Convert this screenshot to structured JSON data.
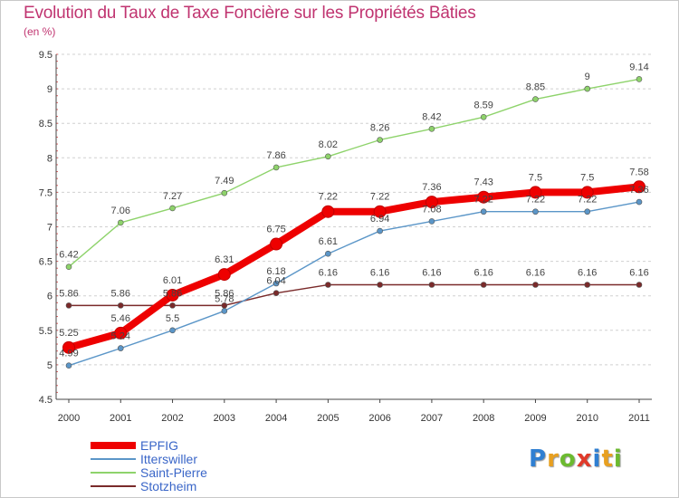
{
  "title": "Evolution du Taux de Taxe Foncière sur les Propriétés Bâties",
  "unit": "(en %)",
  "logo": {
    "letters": [
      "P",
      "r",
      "o",
      "x",
      "i",
      "t",
      "i"
    ],
    "colors": [
      "#2f7fd2",
      "#e8a020",
      "#6cba30",
      "#e03a2a",
      "#2f7fd2",
      "#e8a020",
      "#6cba30"
    ]
  },
  "chart_data": {
    "type": "line",
    "x": [
      "2000",
      "2001",
      "2002",
      "2003",
      "2004",
      "2005",
      "2006",
      "2007",
      "2008",
      "2009",
      "2010",
      "2011"
    ],
    "ylim": [
      4.5,
      9.5
    ],
    "yticks": [
      "4.5",
      "5",
      "5.5",
      "6",
      "6.5",
      "7",
      "7.5",
      "8",
      "8.5",
      "9",
      "9.5"
    ],
    "grid": "horizontal-dashed",
    "legend_position": "bottom-left",
    "series": [
      {
        "name": "EPFIG",
        "color": "#ee0000",
        "values": [
          5.25,
          5.46,
          6.01,
          6.31,
          6.75,
          7.22,
          7.22,
          7.36,
          7.43,
          7.5,
          7.5,
          7.58
        ],
        "labels": [
          "5.25",
          "5.46",
          "6.01",
          "6.31",
          "6.75",
          "7.22",
          "7.22",
          "7.36",
          "7.43",
          "7.5",
          "7.5",
          "7.58"
        ]
      },
      {
        "name": "Itterswiller",
        "color": "#5b96c8",
        "values": [
          4.99,
          5.24,
          5.5,
          5.78,
          6.18,
          6.61,
          6.94,
          7.08,
          7.22,
          7.22,
          7.22,
          7.36
        ],
        "labels": [
          "4.99",
          "5.24",
          "5.5",
          "5.78",
          "6.18",
          "6.61",
          "6.94",
          "7.08",
          "7.22",
          "7.22",
          "7.22",
          "7.36"
        ]
      },
      {
        "name": "Saint-Pierre",
        "color": "#8ed36b",
        "values": [
          6.42,
          7.06,
          7.27,
          7.49,
          7.86,
          8.02,
          8.26,
          8.42,
          8.59,
          8.85,
          9,
          9.14
        ],
        "labels": [
          "6.42",
          "7.06",
          "7.27",
          "7.49",
          "7.86",
          "8.02",
          "8.26",
          "8.42",
          "8.59",
          "8.85",
          "9",
          "9.14"
        ]
      },
      {
        "name": "Stotzheim",
        "color": "#7a2a2a",
        "values": [
          5.86,
          5.86,
          5.86,
          5.86,
          6.04,
          6.16,
          6.16,
          6.16,
          6.16,
          6.16,
          6.16,
          6.16
        ],
        "labels": [
          "5.86",
          "5.86",
          "5.86",
          "5.86",
          "6.04",
          "6.16",
          "6.16",
          "6.16",
          "6.16",
          "6.16",
          "6.16",
          "6.16"
        ]
      }
    ]
  }
}
